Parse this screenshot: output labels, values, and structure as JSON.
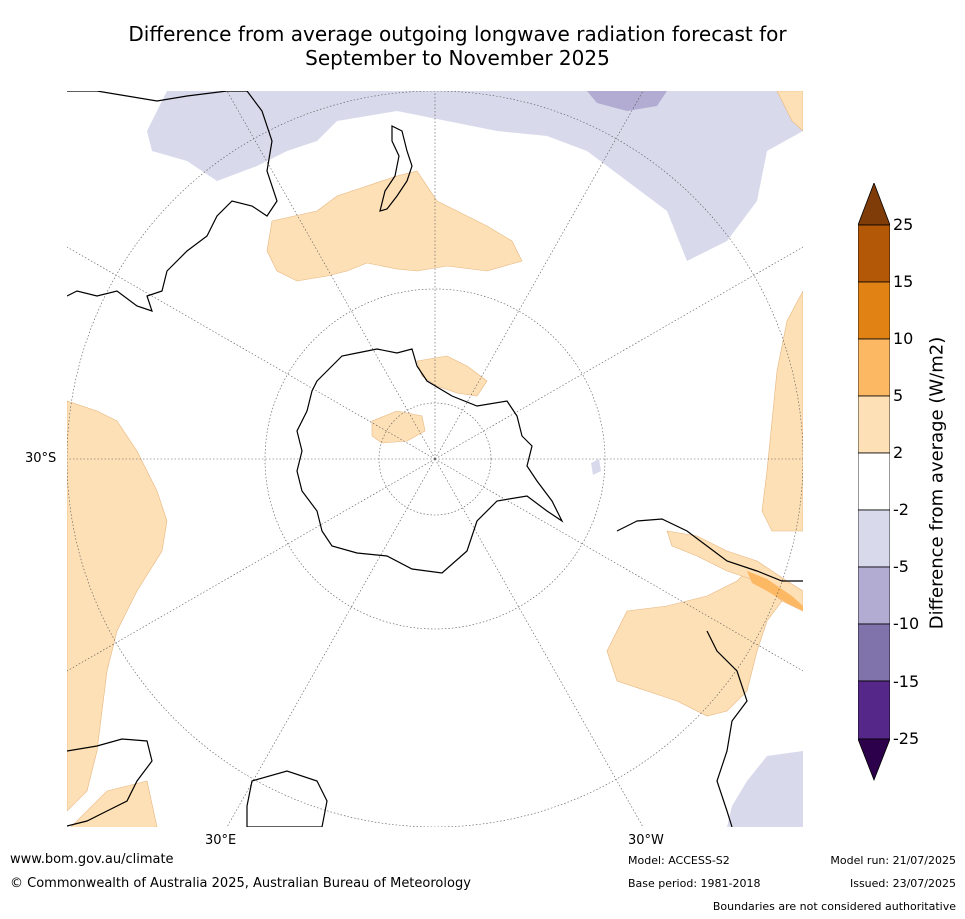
{
  "title_line1": "Difference from average outgoing longwave radiation forecast for",
  "title_line2": "September to November 2025",
  "map": {
    "label_lat_30s": "30°S",
    "label_lon_30e": "30°E",
    "label_lon_30w": "30°W"
  },
  "colorbar": {
    "title": "Difference from average (W/m2)",
    "ticks": [
      "25",
      "15",
      "10",
      "5",
      "2",
      "-2",
      "-5",
      "-10",
      "-15",
      "-25"
    ],
    "colors": {
      "above_25": "#7f3b08",
      "15_25": "#b35806",
      "10_15": "#e08214",
      "5_10": "#fdb863",
      "2_5": "#fee0b6",
      "neutral": "#ffffff",
      "m2_m5": "#d8daeb",
      "m5_m10": "#b2abd2",
      "m10_m15": "#8073ac",
      "m15_m25": "#542788",
      "below_m25": "#2d004b"
    }
  },
  "footer": {
    "website": "www.bom.gov.au/climate",
    "copyright": "© Commonwealth of Australia 2025, Australian Bureau of Meteorology",
    "model": "Model: ACCESS-S2",
    "base_period": "Base period: 1981-2018",
    "model_run": "Model run: 21/07/2025",
    "issued": "Issued: 23/07/2025",
    "disclaimer": "Boundaries are not considered authoritative"
  }
}
